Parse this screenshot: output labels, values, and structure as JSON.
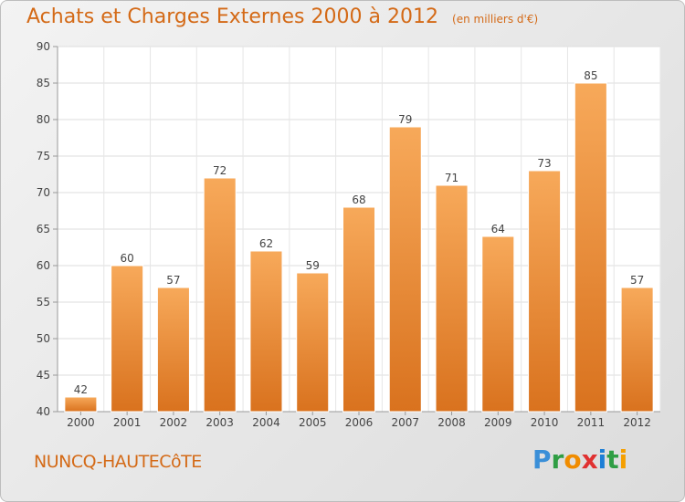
{
  "title": "Achats et Charges Externes 2000 à 2012",
  "unit_note": "(en milliers d'€)",
  "commune": "NUNCQ-HAUTECôTE",
  "logo": {
    "letters": [
      "P",
      "r",
      "o",
      "x",
      "i",
      "t",
      "i"
    ],
    "colors": [
      "#3a8fd8",
      "#2f9e44",
      "#f08c00",
      "#e03131",
      "#1c7ed6",
      "#2f9e44",
      "#f59f00"
    ]
  },
  "colors": {
    "bar_light": "#f7a95a",
    "bar_dark": "#d9721e",
    "title": "#d46a17"
  },
  "chart_data": {
    "type": "bar",
    "categories": [
      "2000",
      "2001",
      "2002",
      "2003",
      "2004",
      "2005",
      "2006",
      "2007",
      "2008",
      "2009",
      "2010",
      "2011",
      "2012"
    ],
    "values": [
      42,
      60,
      57,
      72,
      62,
      59,
      68,
      79,
      71,
      64,
      73,
      85,
      57
    ],
    "ylim": [
      40,
      90
    ],
    "yticks": [
      40,
      45,
      50,
      55,
      60,
      65,
      70,
      75,
      80,
      85,
      90
    ],
    "grid": true,
    "xlabel": "",
    "ylabel": ""
  }
}
